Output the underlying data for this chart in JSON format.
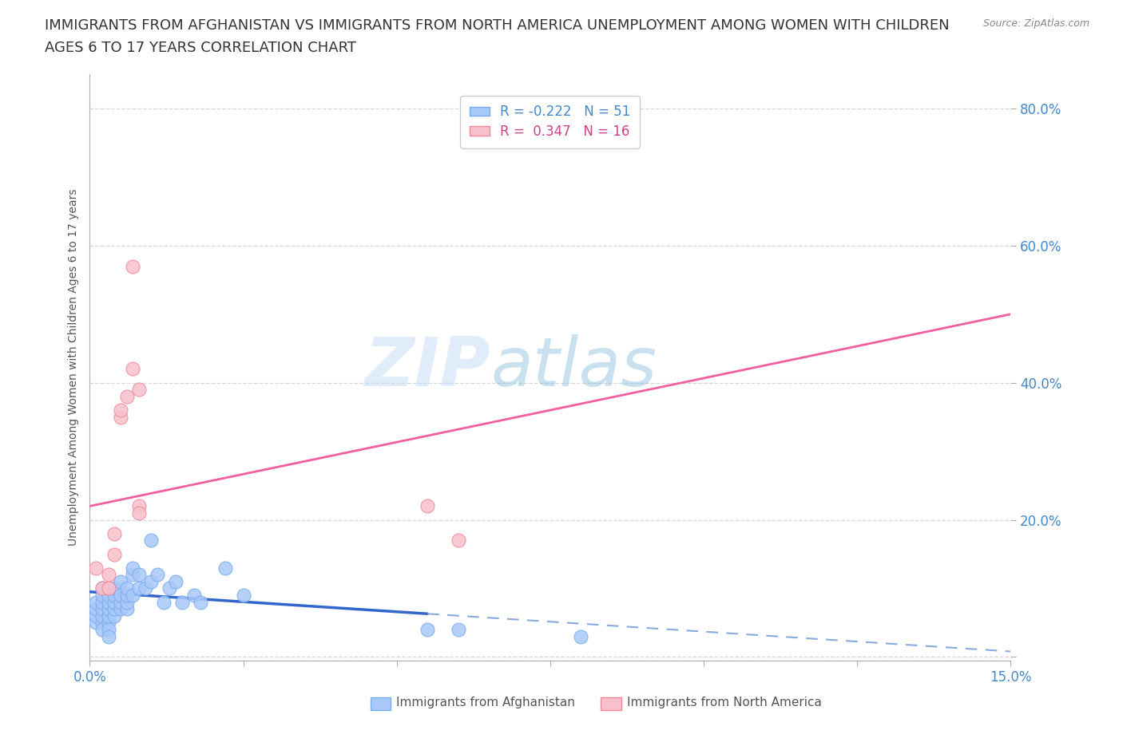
{
  "title_line1": "IMMIGRANTS FROM AFGHANISTAN VS IMMIGRANTS FROM NORTH AMERICA UNEMPLOYMENT AMONG WOMEN WITH CHILDREN",
  "title_line2": "AGES 6 TO 17 YEARS CORRELATION CHART",
  "source": "Source: ZipAtlas.com",
  "ylabel": "Unemployment Among Women with Children Ages 6 to 17 years",
  "xlim": [
    0.0,
    0.15
  ],
  "ylim": [
    -0.005,
    0.85
  ],
  "yticks": [
    0.0,
    0.2,
    0.4,
    0.6,
    0.8
  ],
  "ytick_labels": [
    "",
    "20.0%",
    "40.0%",
    "60.0%",
    "80.0%"
  ],
  "xticks": [
    0.0,
    0.025,
    0.05,
    0.075,
    0.1,
    0.125,
    0.15
  ],
  "xtick_labels": [
    "0.0%",
    "",
    "",
    "",
    "",
    "",
    "15.0%"
  ],
  "watermark_zip": "ZIP",
  "watermark_atlas": "atlas",
  "title_fontsize": 13,
  "axis_color": "#4488cc",
  "background_color": "#ffffff",
  "grid_color": "#cccccc",
  "blue_scatter_color": "#a8c8f8",
  "blue_scatter_edge": "#7aadee",
  "pink_scatter_color": "#f8c0cc",
  "pink_scatter_edge": "#f08898",
  "scatter_blue_x": [
    0.001,
    0.001,
    0.001,
    0.001,
    0.002,
    0.002,
    0.002,
    0.002,
    0.002,
    0.002,
    0.002,
    0.003,
    0.003,
    0.003,
    0.003,
    0.003,
    0.003,
    0.003,
    0.004,
    0.004,
    0.004,
    0.004,
    0.004,
    0.005,
    0.005,
    0.005,
    0.005,
    0.006,
    0.006,
    0.006,
    0.006,
    0.007,
    0.007,
    0.007,
    0.008,
    0.008,
    0.009,
    0.01,
    0.01,
    0.011,
    0.012,
    0.013,
    0.014,
    0.015,
    0.017,
    0.018,
    0.022,
    0.025,
    0.055,
    0.06,
    0.08
  ],
  "scatter_blue_y": [
    0.05,
    0.06,
    0.07,
    0.08,
    0.05,
    0.06,
    0.07,
    0.08,
    0.09,
    0.1,
    0.04,
    0.05,
    0.06,
    0.07,
    0.08,
    0.09,
    0.04,
    0.03,
    0.06,
    0.07,
    0.08,
    0.09,
    0.1,
    0.07,
    0.08,
    0.09,
    0.11,
    0.07,
    0.08,
    0.09,
    0.1,
    0.12,
    0.13,
    0.09,
    0.1,
    0.12,
    0.1,
    0.11,
    0.17,
    0.12,
    0.08,
    0.1,
    0.11,
    0.08,
    0.09,
    0.08,
    0.13,
    0.09,
    0.04,
    0.04,
    0.03
  ],
  "scatter_pink_x": [
    0.001,
    0.002,
    0.003,
    0.003,
    0.004,
    0.004,
    0.005,
    0.005,
    0.006,
    0.007,
    0.007,
    0.008,
    0.008,
    0.008,
    0.055,
    0.06
  ],
  "scatter_pink_y": [
    0.13,
    0.1,
    0.1,
    0.12,
    0.15,
    0.18,
    0.35,
    0.36,
    0.38,
    0.42,
    0.57,
    0.39,
    0.22,
    0.21,
    0.22,
    0.17
  ],
  "trendline_blue_x0": 0.0,
  "trendline_blue_y0": 0.095,
  "trendline_blue_x1": 0.055,
  "trendline_blue_y1": 0.063,
  "trendline_blue_xd0": 0.055,
  "trendline_blue_yd0": 0.063,
  "trendline_blue_xd1": 0.15,
  "trendline_blue_yd1": 0.008,
  "trendline_pink_x0": 0.0,
  "trendline_pink_y0": 0.22,
  "trendline_pink_x1": 0.15,
  "trendline_pink_y1": 0.5
}
